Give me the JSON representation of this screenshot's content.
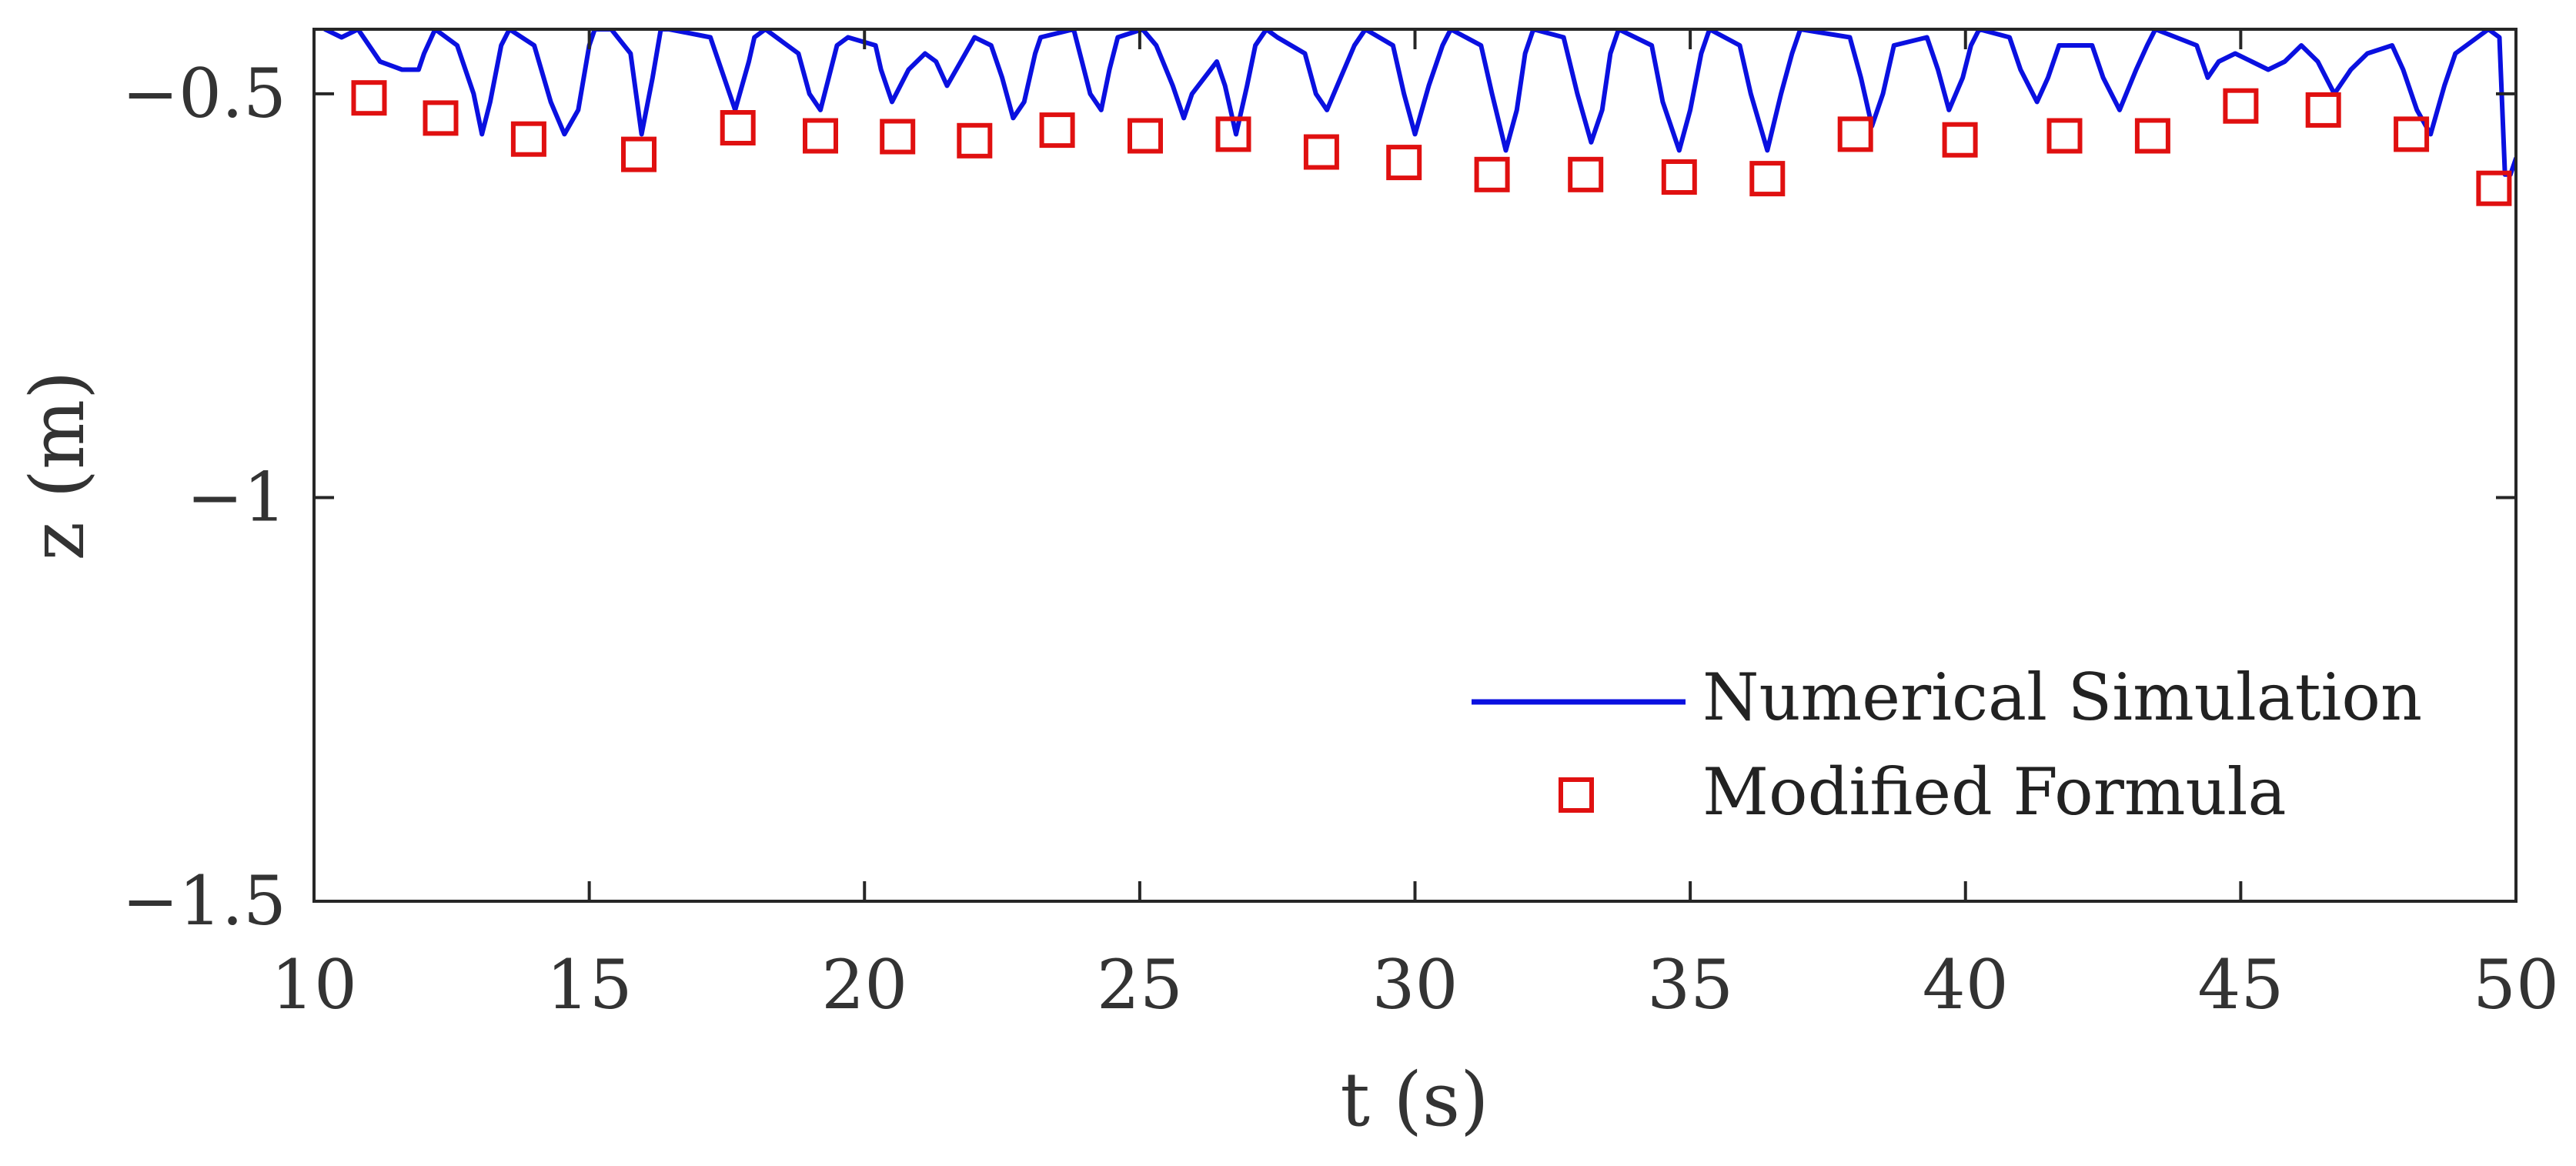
{
  "chart_data": {
    "type": "line",
    "xlabel": "t (s)",
    "ylabel": "z (m)",
    "xlim": [
      10,
      50
    ],
    "ylim": [
      -1.5,
      -0.42
    ],
    "xticks": [
      10,
      15,
      20,
      25,
      30,
      35,
      40,
      45,
      50
    ],
    "yticks": [
      -1.5,
      -1,
      -0.5
    ],
    "xtick_labels": [
      "10",
      "15",
      "20",
      "25",
      "30",
      "35",
      "40",
      "45",
      "50"
    ],
    "ytick_labels": [
      "−1.5",
      "−1",
      "−0.5"
    ],
    "grid": false,
    "legend": "bottom-right",
    "series": [
      {
        "name": "Numerical Simulation",
        "style": "line",
        "color": "#0a10e0",
        "x": [
          10.2,
          10.5,
          10.8,
          11.2,
          11.6,
          11.9,
          12.0,
          12.2,
          12.6,
          12.9,
          13.05,
          13.2,
          13.4,
          13.55,
          14.0,
          14.3,
          14.55,
          14.8,
          15.0,
          15.1,
          15.4,
          15.75,
          15.95,
          16.15,
          16.3,
          16.45,
          17.2,
          17.4,
          17.65,
          17.9,
          18.0,
          18.2,
          18.8,
          19.0,
          19.2,
          19.35,
          19.5,
          19.7,
          20.2,
          20.3,
          20.5,
          20.8,
          21.1,
          21.3,
          21.5,
          21.75,
          22.0,
          22.3,
          22.5,
          22.7,
          22.9,
          23.1,
          23.2,
          23.8,
          23.95,
          24.1,
          24.3,
          24.45,
          24.6,
          25.05,
          25.3,
          25.6,
          25.8,
          25.95,
          26.4,
          26.55,
          26.75,
          26.95,
          27.1,
          27.3,
          27.5,
          28.0,
          28.2,
          28.4,
          28.65,
          28.9,
          29.1,
          29.6,
          29.8,
          30.0,
          30.25,
          30.5,
          30.65,
          31.2,
          31.4,
          31.65,
          31.85,
          32.0,
          32.15,
          32.7,
          32.95,
          33.2,
          33.4,
          33.55,
          33.7,
          34.3,
          34.5,
          34.8,
          35.0,
          35.2,
          35.35,
          35.9,
          36.1,
          36.4,
          36.65,
          36.85,
          37.0,
          37.9,
          38.1,
          38.3,
          38.5,
          38.7,
          39.3,
          39.5,
          39.7,
          39.95,
          40.1,
          40.25,
          40.8,
          41.0,
          41.3,
          41.5,
          41.7,
          42.3,
          42.5,
          42.8,
          43.1,
          43.3,
          43.45,
          44.2,
          44.4,
          44.6,
          44.9,
          45.2,
          45.5,
          45.8,
          46.1,
          46.4,
          46.7,
          47.0,
          47.3,
          47.75,
          47.95,
          48.2,
          48.45,
          48.7,
          48.9,
          49.5,
          49.7,
          49.8,
          49.9,
          50.0
        ],
        "y": [
          -0.42,
          -0.43,
          -0.42,
          -0.46,
          -0.47,
          -0.47,
          -0.45,
          -0.42,
          -0.44,
          -0.5,
          -0.55,
          -0.51,
          -0.44,
          -0.42,
          -0.44,
          -0.51,
          -0.55,
          -0.52,
          -0.44,
          -0.42,
          -0.42,
          -0.45,
          -0.55,
          -0.48,
          -0.42,
          -0.42,
          -0.43,
          -0.47,
          -0.52,
          -0.46,
          -0.43,
          -0.42,
          -0.45,
          -0.5,
          -0.52,
          -0.48,
          -0.44,
          -0.43,
          -0.44,
          -0.47,
          -0.51,
          -0.47,
          -0.45,
          -0.46,
          -0.49,
          -0.46,
          -0.43,
          -0.44,
          -0.48,
          -0.53,
          -0.51,
          -0.45,
          -0.43,
          -0.42,
          -0.46,
          -0.5,
          -0.52,
          -0.47,
          -0.43,
          -0.42,
          -0.44,
          -0.49,
          -0.53,
          -0.5,
          -0.46,
          -0.49,
          -0.55,
          -0.49,
          -0.44,
          -0.42,
          -0.43,
          -0.45,
          -0.5,
          -0.52,
          -0.48,
          -0.44,
          -0.42,
          -0.44,
          -0.5,
          -0.55,
          -0.49,
          -0.44,
          -0.42,
          -0.44,
          -0.5,
          -0.57,
          -0.52,
          -0.45,
          -0.42,
          -0.43,
          -0.5,
          -0.56,
          -0.52,
          -0.45,
          -0.42,
          -0.44,
          -0.51,
          -0.57,
          -0.52,
          -0.45,
          -0.42,
          -0.44,
          -0.5,
          -0.57,
          -0.5,
          -0.45,
          -0.42,
          -0.43,
          -0.48,
          -0.54,
          -0.5,
          -0.44,
          -0.43,
          -0.47,
          -0.52,
          -0.48,
          -0.44,
          -0.42,
          -0.43,
          -0.47,
          -0.51,
          -0.48,
          -0.44,
          -0.44,
          -0.48,
          -0.52,
          -0.47,
          -0.44,
          -0.42,
          -0.44,
          -0.48,
          -0.46,
          -0.45,
          -0.46,
          -0.47,
          -0.46,
          -0.44,
          -0.46,
          -0.5,
          -0.47,
          -0.45,
          -0.44,
          -0.47,
          -0.52,
          -0.55,
          -0.49,
          -0.45,
          -0.42,
          -0.43,
          -0.6,
          -0.6,
          -0.58
        ]
      },
      {
        "name": "Modified Formula",
        "style": "marker",
        "marker": "square",
        "color": "#e01010",
        "x": [
          11.0,
          12.3,
          13.9,
          15.9,
          17.7,
          19.2,
          20.6,
          22.0,
          23.5,
          25.1,
          26.7,
          28.3,
          29.8,
          31.4,
          33.1,
          34.8,
          36.4,
          38.0,
          39.9,
          41.8,
          43.4,
          45.0,
          46.5,
          48.1,
          49.6
        ],
        "y": [
          -0.505,
          -0.53,
          -0.556,
          -0.575,
          -0.542,
          -0.552,
          -0.553,
          -0.558,
          -0.545,
          -0.552,
          -0.55,
          -0.572,
          -0.585,
          -0.6,
          -0.6,
          -0.603,
          -0.605,
          -0.55,
          -0.557,
          -0.552,
          -0.552,
          -0.515,
          -0.52,
          -0.55,
          -0.617
        ]
      }
    ]
  }
}
